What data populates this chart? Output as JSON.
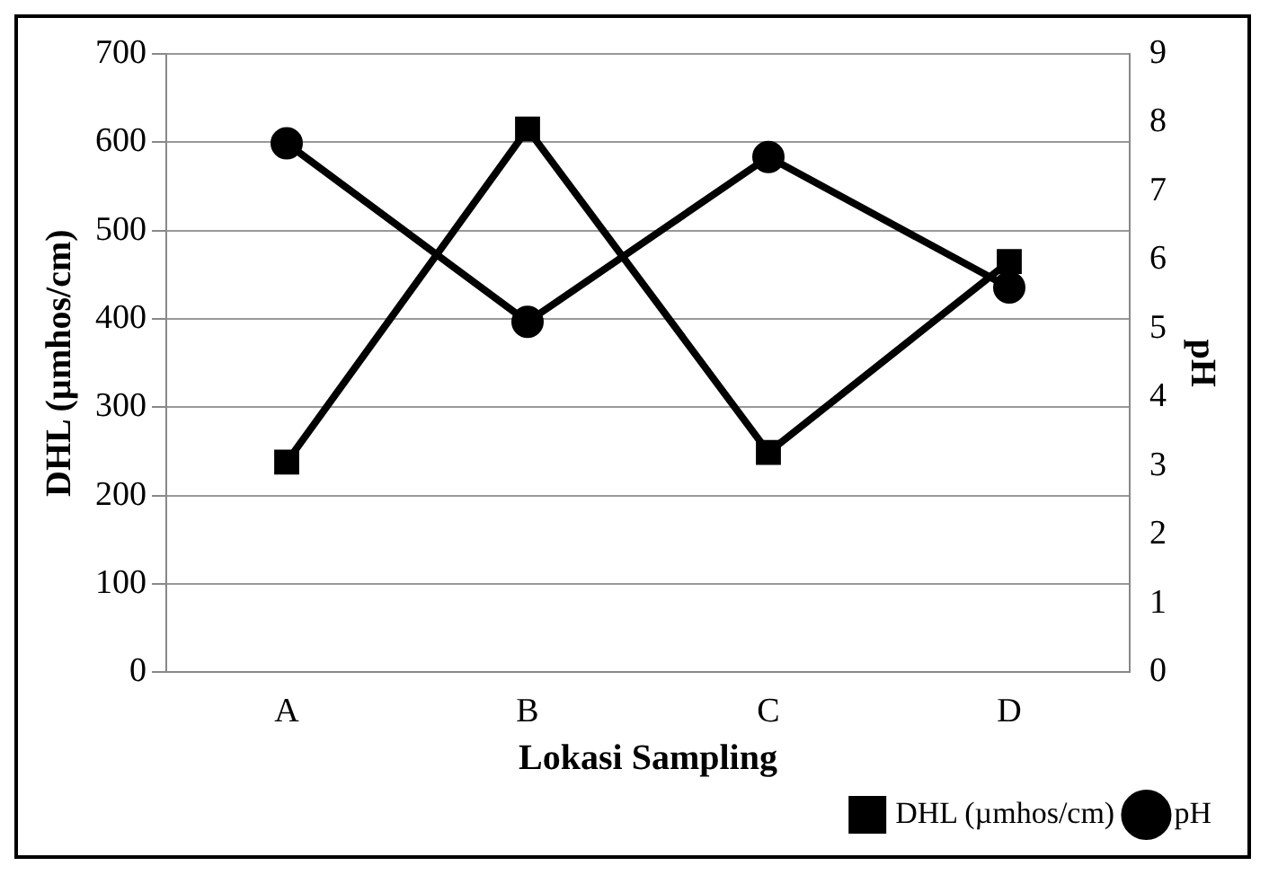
{
  "chart_data": {
    "type": "line",
    "xlabel": "Lokasi Sampling",
    "ylabel": "DHL (µmhos/cm)",
    "y2label": "pH",
    "categories": [
      "A",
      "B",
      "C",
      "D"
    ],
    "series": [
      {
        "name": "DHL (µmhos/cm)",
        "color": "#000000",
        "values": [
          238,
          615,
          249,
          465
        ],
        "marker": "square"
      },
      {
        "name": "pH",
        "color": "#000000",
        "values": [
          7.7,
          5.1,
          7.5,
          5.6
        ],
        "marker": "circle",
        "axis": "y2"
      }
    ],
    "ylim": [
      0,
      700
    ],
    "yticks": [
      0,
      100,
      200,
      300,
      400,
      500,
      600,
      700
    ],
    "y2lim": [
      0,
      9
    ],
    "y2ticks": [
      0,
      1,
      2,
      3,
      4,
      5,
      6,
      7,
      8,
      9
    ],
    "grid": "y",
    "legend": "bottom right",
    "line_style": "solid"
  }
}
